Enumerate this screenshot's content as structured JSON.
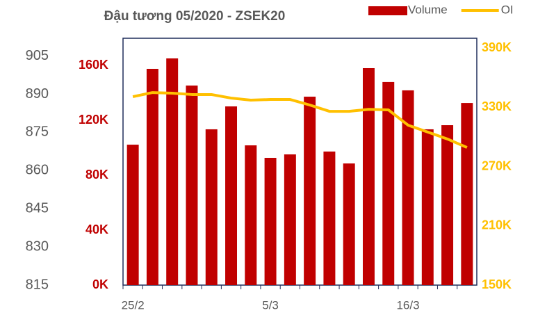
{
  "chart_data": {
    "type": "bar-line",
    "title": "Đậu tương 05/2020 - ZSEK20",
    "categories": [
      "25/2",
      null,
      null,
      null,
      null,
      null,
      null,
      "5/3",
      null,
      null,
      null,
      null,
      null,
      null,
      "16/3",
      null,
      null,
      null
    ],
    "series": [
      {
        "name": "Volume",
        "type": "bar",
        "color": "#c00000",
        "axis": "y",
        "values": [
          102400,
          157700,
          165300,
          145500,
          113600,
          130300,
          101900,
          92800,
          95300,
          137400,
          97400,
          88700,
          158200,
          148100,
          142000,
          113600,
          116600,
          132800
        ]
      },
      {
        "name": "OI",
        "type": "line",
        "color": "#ffc000",
        "axis": "y2",
        "values": [
          340800,
          345000,
          344400,
          343000,
          343000,
          339400,
          337300,
          338000,
          338000,
          332400,
          326000,
          326000,
          328000,
          327500,
          312000,
          305000,
          298000,
          289400
        ]
      }
    ],
    "ylim": [
      0,
      180000
    ],
    "yticks": [
      {
        "value": 0,
        "label": "0K"
      },
      {
        "value": 40000,
        "label": "40K"
      },
      {
        "value": 80000,
        "label": "80K"
      },
      {
        "value": 120000,
        "label": "120K"
      },
      {
        "value": 160000,
        "label": "160K"
      }
    ],
    "y2lim": [
      150000,
      400000
    ],
    "y2ticks": [
      {
        "value": 150000,
        "label": "150K"
      },
      {
        "value": 210000,
        "label": "210K"
      },
      {
        "value": 270000,
        "label": "270K"
      },
      {
        "value": 330000,
        "label": "330K"
      },
      {
        "value": 390000,
        "label": "390K"
      }
    ],
    "y3lim": [
      815,
      912
    ],
    "y3ticks": [
      815,
      830,
      845,
      860,
      875,
      890,
      905
    ],
    "legend": "top-right"
  }
}
